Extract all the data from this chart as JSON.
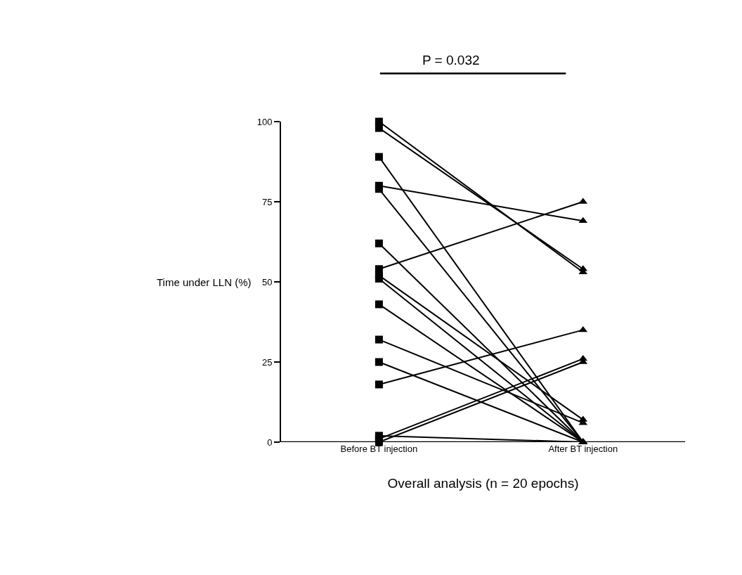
{
  "chart_data": {
    "type": "line",
    "categories": [
      "Before BT injection",
      "After BT injection"
    ],
    "xlabel": "Overall analysis (n = 20 epochs)",
    "ylabel": "Time under LLN (%)",
    "annotations": [
      "P = 0.032"
    ],
    "ylim": [
      0,
      100
    ],
    "yticks": [
      0,
      25,
      50,
      75,
      100
    ],
    "marker": [
      "square",
      "triangle"
    ],
    "series": [
      {
        "color": "#000000",
        "values": [
          100,
          53
        ]
      },
      {
        "color": "#000000",
        "values": [
          98,
          54
        ]
      },
      {
        "color": "#000000",
        "values": [
          89,
          0
        ]
      },
      {
        "color": "#000000",
        "values": [
          80,
          69
        ]
      },
      {
        "color": "#000000",
        "values": [
          79,
          0
        ]
      },
      {
        "color": "#000000",
        "values": [
          62,
          0
        ]
      },
      {
        "color": "#000000",
        "values": [
          54,
          75
        ]
      },
      {
        "color": "#000000",
        "values": [
          52,
          7
        ]
      },
      {
        "color": "#000000",
        "values": [
          51,
          0
        ]
      },
      {
        "color": "#000000",
        "values": [
          43,
          0
        ]
      },
      {
        "color": "#000000",
        "values": [
          32,
          6
        ]
      },
      {
        "color": "#000000",
        "values": [
          25,
          0
        ]
      },
      {
        "color": "#000000",
        "values": [
          18,
          35
        ]
      },
      {
        "color": "#000000",
        "values": [
          1,
          26
        ]
      },
      {
        "color": "#000000",
        "values": [
          0,
          25
        ]
      },
      {
        "color": "#000000",
        "values": [
          2,
          0
        ]
      }
    ]
  }
}
